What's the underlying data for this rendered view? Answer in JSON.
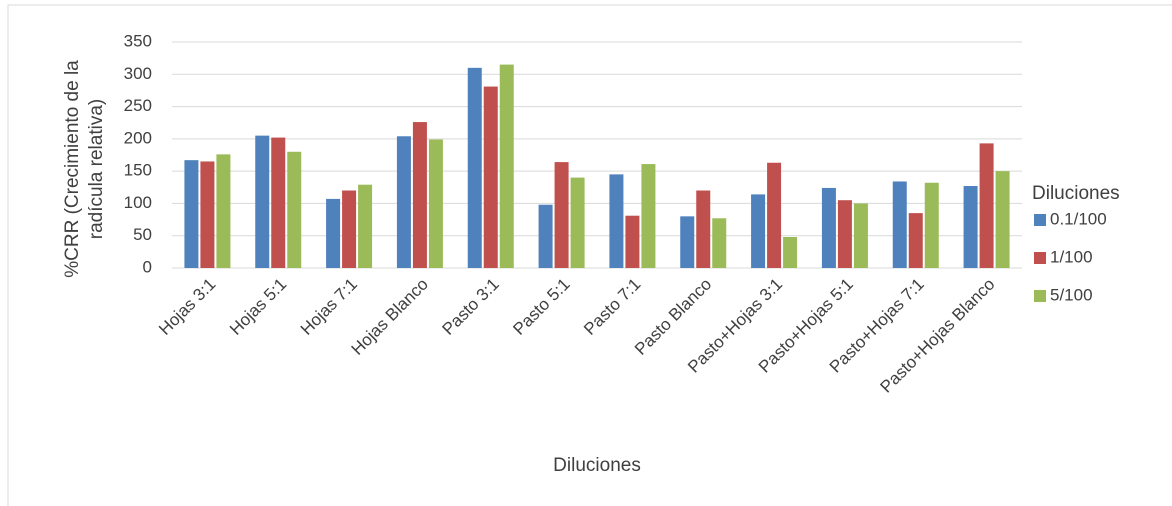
{
  "chart_data": {
    "type": "bar",
    "y_label": "%CRR (Crecimiento de la radícula relativa)",
    "x_label": "Diluciones",
    "legend_title": "Diluciones",
    "legend_position": "right",
    "grid": true,
    "categories": [
      "Hojas 3:1",
      "Hojas 5:1",
      "Hojas 7:1",
      "Hojas Blanco",
      "Pasto 3:1",
      "Pasto 5:1",
      "Pasto 7:1",
      "Pasto Blanco",
      "Pasto+Hojas 3:1",
      "Pasto+Hojas 5:1",
      "Pasto+Hojas 7:1",
      "Pasto+Hojas Blanco"
    ],
    "series": [
      {
        "name": "0.1/100",
        "color": "#4f81bd",
        "values": [
          167,
          205,
          107,
          204,
          310,
          98,
          145,
          80,
          114,
          124,
          134,
          127
        ]
      },
      {
        "name": "1/100",
        "color": "#c0504d",
        "values": [
          165,
          202,
          120,
          226,
          281,
          164,
          81,
          120,
          163,
          105,
          85,
          193
        ]
      },
      {
        "name": "5/100",
        "color": "#9bbb59",
        "values": [
          176,
          180,
          129,
          199,
          315,
          140,
          161,
          77,
          48,
          100,
          132,
          150
        ]
      }
    ],
    "ylim": [
      0,
      350
    ],
    "yticks": [
      0,
      50,
      100,
      150,
      200,
      250,
      300,
      350
    ]
  }
}
